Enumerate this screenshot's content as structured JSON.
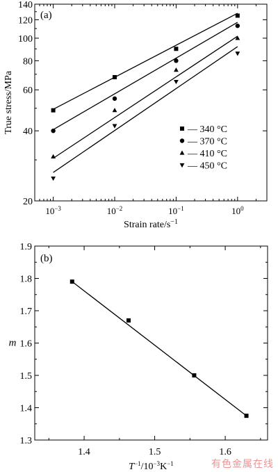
{
  "chart_data": [
    {
      "panel_label": "(a)",
      "type": "scatter",
      "ylabel": "True stress/MPa",
      "xlabel": "Strain rate/s",
      "xlabel_sup": "−1",
      "x_scale": "log",
      "y_scale": "log",
      "xlim": [
        0.0005,
        3
      ],
      "ylim": [
        20,
        140
      ],
      "x_ticks": [
        0.001,
        0.01,
        0.1,
        1
      ],
      "x_tick_labels": [
        {
          "base": "10",
          "exp": "−3"
        },
        {
          "base": "10",
          "exp": "−2"
        },
        {
          "base": "10",
          "exp": "−1"
        },
        {
          "base": "10",
          "exp": "0"
        }
      ],
      "y_ticks": [
        20,
        40,
        60,
        80,
        100,
        120,
        140
      ],
      "y_tick_labels": [
        "20",
        "40",
        "60",
        "80",
        "100",
        "120",
        "140"
      ],
      "legend_position": "right-middle",
      "series": [
        {
          "name": "340 °C",
          "marker": "square",
          "x": [
            0.001,
            0.01,
            0.1,
            1
          ],
          "y": [
            49,
            68,
            90,
            125
          ],
          "fit": [
            [
              0.001,
              49.5
            ],
            [
              1,
              128
            ]
          ]
        },
        {
          "name": "370 °C",
          "marker": "circle",
          "x": [
            0.001,
            0.01,
            0.1,
            1
          ],
          "y": [
            40,
            55,
            80,
            113
          ],
          "fit": [
            [
              0.001,
              40.5
            ],
            [
              1,
              117
            ]
          ]
        },
        {
          "name": "410 °C",
          "marker": "triangle-up",
          "x": [
            0.001,
            0.01,
            0.1,
            1
          ],
          "y": [
            31,
            49,
            73,
            100
          ],
          "fit": [
            [
              0.001,
              30.5
            ],
            [
              1,
              102
            ]
          ]
        },
        {
          "name": "450 °C",
          "marker": "triangle-down",
          "x": [
            0.001,
            0.01,
            0.1,
            1
          ],
          "y": [
            25,
            42,
            65,
            86
          ],
          "fit": [
            [
              0.001,
              26.5
            ],
            [
              1,
              92
            ]
          ]
        }
      ]
    },
    {
      "panel_label": "(b)",
      "type": "scatter",
      "ylabel": "m",
      "xlabel": "T",
      "xlabel_parts": [
        "T",
        "−1",
        "/10",
        "−3",
        "K",
        "−1"
      ],
      "xlim": [
        1.33,
        1.66
      ],
      "ylim": [
        1.3,
        1.9
      ],
      "x_ticks": [
        1.4,
        1.5,
        1.6
      ],
      "x_tick_labels": [
        "1.4",
        "1.5",
        "1.6"
      ],
      "y_ticks": [
        1.3,
        1.4,
        1.5,
        1.6,
        1.7,
        1.8,
        1.9
      ],
      "y_tick_labels": [
        "1.3",
        "1.4",
        "1.5",
        "1.6",
        "1.7",
        "1.8",
        "1.9"
      ],
      "series": [
        {
          "marker": "square",
          "x": [
            1.383,
            1.463,
            1.556,
            1.63
          ],
          "y": [
            1.79,
            1.67,
            1.5,
            1.375
          ],
          "fit": [
            [
              1.383,
              1.79
            ],
            [
              1.63,
              1.375
            ]
          ]
        }
      ]
    }
  ],
  "watermark": "有色金属在线"
}
